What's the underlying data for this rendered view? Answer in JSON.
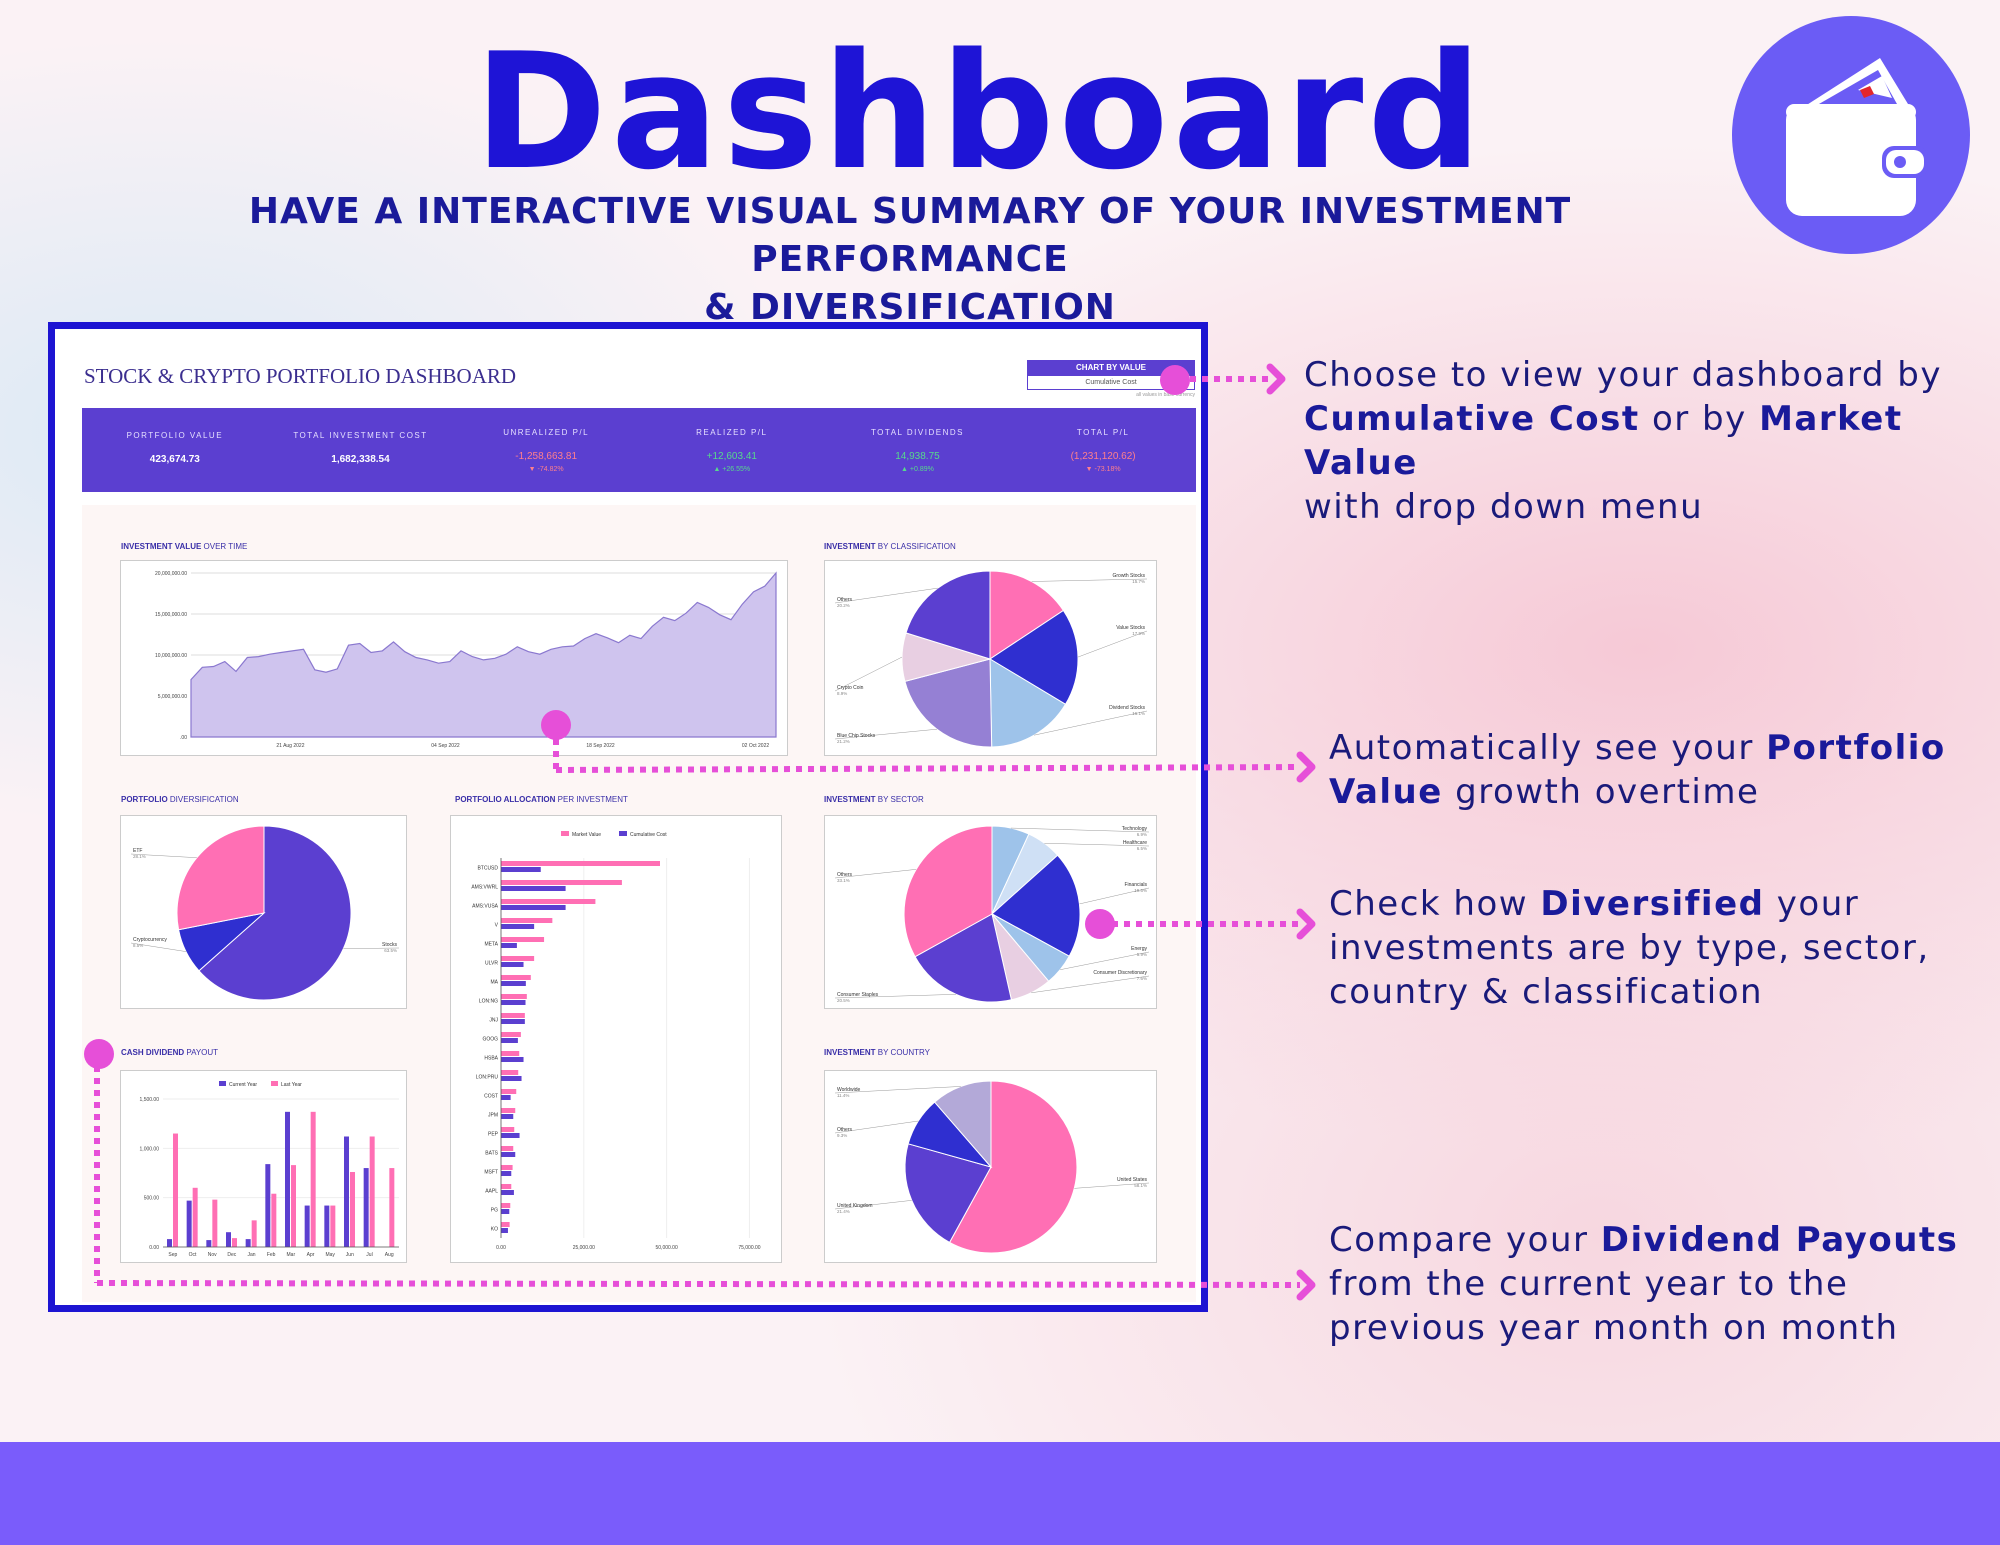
{
  "hero": {
    "title": "Dashboard",
    "subtitle_line1": "HAVE A INTERACTIVE VISUAL SUMMARY OF YOUR INVESTMENT PERFORMANCE",
    "subtitle_line2": "& DIVERSIFICATION",
    "badge_icon": "wallet-icon"
  },
  "dashboard": {
    "title": "STOCK & CRYPTO PORTFOLIO DASHBOARD",
    "chart_by": {
      "label": "CHART BY VALUE",
      "selected": "Cumulative Cost",
      "note": "all values in base currency"
    },
    "kpis": [
      {
        "label": "PORTFOLIO VALUE",
        "value": "423,674.73",
        "change": ""
      },
      {
        "label": "TOTAL INVESTMENT COST",
        "value": "1,682,338.54",
        "change": ""
      },
      {
        "label": "UNREALIZED P/L",
        "value": "-1,258,663.81",
        "change": "▼ -74.82%"
      },
      {
        "label": "REALIZED P/L",
        "value": "+12,603.41",
        "change": "▲ +26.55%"
      },
      {
        "label": "TOTAL DIVIDENDS",
        "value": "14,938.75",
        "change": "▲ +0.89%"
      },
      {
        "label": "TOTAL P/L",
        "value": "(1,231,120.62)",
        "change": "▼ -73.18%"
      }
    ],
    "colors": {
      "primary": "#5b3fd0",
      "pink": "#ff6fb4",
      "light_purple": "#cfc4ee",
      "blue": "#2f2fd0",
      "light_blue": "#9ec3ea"
    },
    "sections": {
      "value_over_time": {
        "title_bold": "INVESTMENT VALUE",
        "title_rest": " OVER TIME"
      },
      "by_classification": {
        "title_bold": "INVESTMENT",
        "title_rest": " BY CLASSIFICATION"
      },
      "diversification": {
        "title_bold": "PORTFOLIO",
        "title_rest": " DIVERSIFICATION"
      },
      "allocation": {
        "title_bold": "PORTFOLIO ALLOCATION",
        "title_rest": " PER INVESTMENT"
      },
      "by_sector": {
        "title_bold": "INVESTMENT",
        "title_rest": " BY SECTOR"
      },
      "dividend": {
        "title_bold": "CASH DIVIDEND",
        "title_rest": " PAYOUT"
      },
      "by_country": {
        "title_bold": "INVESTMENT",
        "title_rest": " BY COUNTRY"
      }
    }
  },
  "chart_data": [
    {
      "type": "area",
      "title": "INVESTMENT VALUE OVER TIME",
      "ylim": [
        0,
        20000000
      ],
      "y_ticks": [
        "20,000,000.00",
        "15,000,000.00",
        "10,000,000.00",
        "5,000,000.00",
        ".00"
      ],
      "x_ticks": [
        "21 Aug 2022",
        "04 Sep 2022",
        "18 Sep 2022",
        "02 Oct 2022"
      ],
      "values": [
        7000000,
        8500000,
        8600000,
        9200000,
        8000000,
        9700000,
        9800000,
        10100000,
        10300000,
        10500000,
        10700000,
        8200000,
        7900000,
        8300000,
        11200000,
        11400000,
        10300000,
        10500000,
        11600000,
        10400000,
        9700000,
        9400000,
        9000000,
        9200000,
        10500000,
        9800000,
        9400000,
        9600000,
        10100000,
        11000000,
        10400000,
        10100000,
        10700000,
        11000000,
        11100000,
        12000000,
        12600000,
        12100000,
        11500000,
        12400000,
        12000000,
        13500000,
        14600000,
        14200000,
        15100000,
        16400000,
        15800000,
        14900000,
        14300000,
        16200000,
        17700000,
        18400000,
        20000000
      ]
    },
    {
      "type": "pie",
      "title": "INVESTMENT BY CLASSIFICATION",
      "slices": [
        {
          "label": "Growth Stocks",
          "pct": "15.7%",
          "value": 15.7,
          "color": "#ff6fb4"
        },
        {
          "label": "Value Stocks",
          "pct": "17.9%",
          "value": 17.9,
          "color": "#2f2fd0"
        },
        {
          "label": "Dividend Stocks",
          "pct": "16.1%",
          "value": 16.1,
          "color": "#9ec3ea"
        },
        {
          "label": "Blue Chip Stocks",
          "pct": "21.2%",
          "value": 21.2,
          "color": "#9580d4"
        },
        {
          "label": "Crypto Coin",
          "pct": "8.9%",
          "value": 8.9,
          "color": "#e8cfe2"
        },
        {
          "label": "Others",
          "pct": "20.2%",
          "value": 20.2,
          "color": "#5b3fd0"
        }
      ]
    },
    {
      "type": "pie",
      "title": "PORTFOLIO DIVERSIFICATION",
      "slices": [
        {
          "label": "Stocks",
          "pct": "63.5%",
          "value": 63.5,
          "color": "#5b3fd0"
        },
        {
          "label": "Cryptocurrency",
          "pct": "8.5%",
          "value": 8.5,
          "color": "#2f2fd0"
        },
        {
          "label": "ETF",
          "pct": "28.1%",
          "value": 28.1,
          "color": "#ff6fb4"
        }
      ]
    },
    {
      "type": "bar",
      "title": "PORTFOLIO ALLOCATION PER INVESTMENT",
      "orientation": "horizontal",
      "categories": [
        "BTCUSD",
        "AMS:VWRL",
        "AMS:VUSA",
        "V",
        "META",
        "ULVR",
        "MA",
        "LON:NG",
        "JNJ",
        "GOOG",
        "HSBA",
        "LON:PRU",
        "COST",
        "JPM",
        "PEP",
        "BATS",
        "MSFT",
        "AAPL",
        "PG",
        "KO"
      ],
      "x_ticks": [
        "0.00",
        "25,000.00",
        "50,000.00",
        "75,000.00"
      ],
      "xlim": [
        0,
        80000
      ],
      "series": [
        {
          "name": "Market Value",
          "color": "#ff6fb4",
          "values": [
            48000,
            36500,
            28500,
            15500,
            13000,
            10000,
            9000,
            7800,
            7200,
            6000,
            5500,
            5200,
            4600,
            4300,
            4000,
            3700,
            3500,
            3100,
            2800,
            2600
          ]
        },
        {
          "name": "Cumulative Cost",
          "color": "#5b3fd0",
          "values": [
            12000,
            19500,
            19500,
            10000,
            4800,
            6800,
            7500,
            7400,
            7200,
            5100,
            6800,
            6200,
            2900,
            3700,
            5600,
            4300,
            3100,
            3900,
            2500,
            2100
          ]
        }
      ]
    },
    {
      "type": "pie",
      "title": "INVESTMENT BY SECTOR",
      "slices": [
        {
          "label": "Technology",
          "pct": "6.9%",
          "value": 6.9,
          "color": "#9ec3ea"
        },
        {
          "label": "Healthcare",
          "pct": "6.5%",
          "value": 6.5,
          "color": "#cfe0f5"
        },
        {
          "label": "Financials",
          "pct": "19.6%",
          "value": 19.6,
          "color": "#2f2fd0"
        },
        {
          "label": "Energy",
          "pct": "5.9%",
          "value": 5.9,
          "color": "#9ec3ea"
        },
        {
          "label": "Consumer Discretionary",
          "pct": "7.6%",
          "value": 7.6,
          "color": "#e8cfe2"
        },
        {
          "label": "Consumer Staples",
          "pct": "20.5%",
          "value": 20.5,
          "color": "#5b3fd0"
        },
        {
          "label": "Others",
          "pct": "33.1%",
          "value": 33.1,
          "color": "#ff6fb4"
        }
      ]
    },
    {
      "type": "bar",
      "title": "CASH DIVIDEND PAYOUT",
      "categories": [
        "Sep",
        "Oct",
        "Nov",
        "Dec",
        "Jan",
        "Feb",
        "Mar",
        "Apr",
        "May",
        "Jun",
        "Jul",
        "Aug"
      ],
      "y_ticks": [
        "1,500.00",
        "1,000.00",
        "500.00",
        "0.00"
      ],
      "ylim": [
        0,
        1500
      ],
      "series": [
        {
          "name": "Current Year",
          "color": "#5b3fd0",
          "values": [
            80,
            470,
            70,
            150,
            80,
            840,
            1370,
            420,
            420,
            1120,
            800,
            0
          ]
        },
        {
          "name": "Last Year",
          "color": "#ff6fb4",
          "values": [
            1150,
            600,
            480,
            90,
            270,
            540,
            830,
            1370,
            420,
            760,
            1120,
            800
          ]
        }
      ]
    },
    {
      "type": "pie",
      "title": "INVESTMENT BY COUNTRY",
      "slices": [
        {
          "label": "United States",
          "pct": "58.1%",
          "value": 58.1,
          "color": "#ff6fb4"
        },
        {
          "label": "United Kingdom",
          "pct": "21.4%",
          "value": 21.4,
          "color": "#5b3fd0"
        },
        {
          "label": "Others",
          "pct": "9.3%",
          "value": 9.3,
          "color": "#2f2fd0"
        },
        {
          "label": "Worldwide",
          "pct": "11.4%",
          "value": 11.4,
          "color": "#b3a9d8"
        }
      ]
    }
  ],
  "annotations": [
    {
      "t1": "Choose to view your dashboard by",
      "b1": "Cumulative Cost",
      "t2": " or by ",
      "b2": "Market Value",
      "t3": "with drop down menu"
    },
    {
      "t1": "Automatically see your ",
      "b1": "Portfolio",
      "b2": "Value",
      "t2": " growth overtime"
    },
    {
      "t1": "Check how ",
      "b1": "Diversified",
      "t2": " your",
      "t3": "investments are by type, sector,",
      "t4": "country & classification"
    },
    {
      "t1": "Compare your ",
      "b1": "Dividend Payouts",
      "t2": "from the current year to the",
      "t3": "previous year month on month"
    }
  ]
}
